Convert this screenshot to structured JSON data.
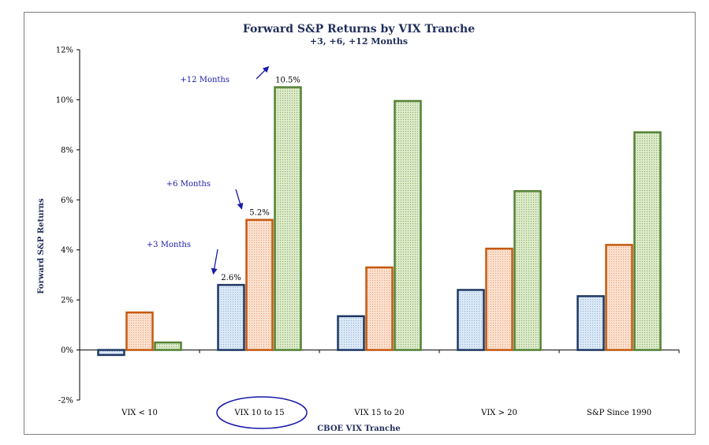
{
  "chart_data": {
    "type": "bar",
    "title": "Forward S&P Returns by VIX Tranche",
    "subtitle": "+3, +6, +12 Months",
    "xlabel": "CBOE VIX Tranche",
    "ylabel": "Forward S&P Returns",
    "categories": [
      "VIX < 10",
      "VIX 10 to 15",
      "VIX 15 to 20",
      "VIX > 20",
      "S&P Since 1990"
    ],
    "highlighted_category": "VIX 10 to 15",
    "series": [
      {
        "values": [
          -0.2,
          2.6,
          1.35,
          2.4,
          2.15
        ],
        "fill": "#bdd7ee",
        "stroke": "#1f3864"
      },
      {
        "values": [
          1.5,
          5.2,
          3.3,
          4.05,
          4.2
        ],
        "fill": "#f8cbad",
        "stroke": "#c55a11"
      },
      {
        "values": [
          0.3,
          10.5,
          9.95,
          6.35,
          8.7
        ],
        "fill": "#c9ddb0",
        "stroke": "#548235"
      }
    ],
    "ylim": [
      -2,
      12
    ],
    "yticks": [
      -2,
      0,
      2,
      4,
      6,
      8,
      10,
      12
    ],
    "ytick_labels": [
      "-2%",
      "0%",
      "2%",
      "4%",
      "6%",
      "8%",
      "10%",
      "12%"
    ],
    "data_labels": [
      {
        "category": "VIX 10 to 15",
        "series_index": 0,
        "text": "2.6%"
      },
      {
        "category": "VIX 10 to 15",
        "series_index": 1,
        "text": "5.2%"
      },
      {
        "category": "VIX 10 to 15",
        "series_index": 2,
        "text": "10.5%"
      }
    ],
    "annotations": [
      {
        "text": "+3 Months",
        "series_index": 0
      },
      {
        "text": "+6 Months",
        "series_index": 1
      },
      {
        "text": "+12 Months",
        "series_index": 2
      }
    ],
    "annotation_color": "#1a1aa8",
    "grid": false,
    "legend": "none"
  }
}
